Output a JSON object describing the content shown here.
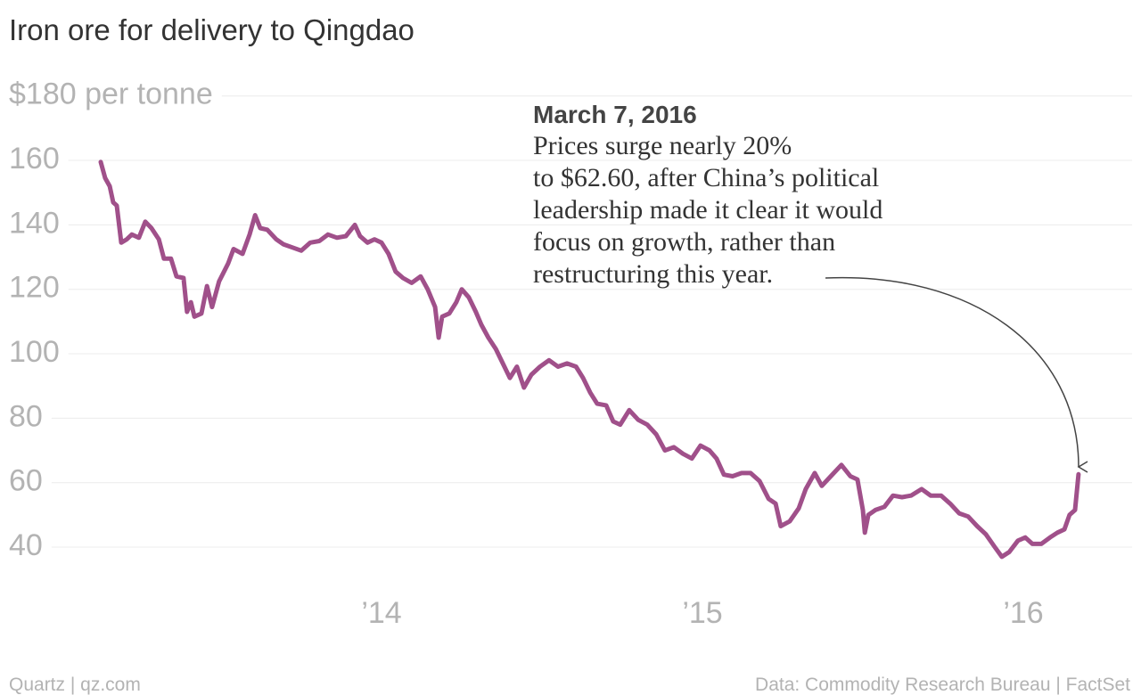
{
  "chart_data": {
    "type": "line",
    "title": "Iron ore for delivery to Qingdao",
    "source_left": "Quartz | qz.com",
    "source_right": "Data: Commodity Research Bureau | FactSet",
    "annotation": {
      "title": "March 7, 2016",
      "lines": [
        "Prices surge nearly 20%",
        "to $62.60, after China’s political",
        "leadership made it clear it would",
        "focus on growth, rather than",
        "restructuring this year."
      ]
    },
    "xlim": [
      2012.85,
      2016.35
    ],
    "xticks": [
      {
        "value": 2014,
        "label": "’14"
      },
      {
        "value": 2015,
        "label": "’15"
      },
      {
        "value": 2016,
        "label": "’16"
      }
    ],
    "ylim": [
      30,
      180
    ],
    "yticks": [
      40,
      60,
      80,
      100,
      120,
      140,
      160,
      {
        "value": 180,
        "label": "$180 per tonne"
      }
    ],
    "grid": true,
    "series": [
      {
        "name": "Iron ore",
        "color": "#a0508a",
        "x": [
          2013.125,
          2013.139,
          2013.153,
          2013.164,
          2013.175,
          2013.189,
          2013.206,
          2013.222,
          2013.244,
          2013.264,
          2013.283,
          2013.306,
          2013.322,
          2013.344,
          2013.361,
          2013.383,
          2013.394,
          2013.406,
          2013.417,
          2013.439,
          2013.456,
          2013.472,
          2013.494,
          2013.522,
          2013.539,
          2013.567,
          2013.589,
          2013.606,
          2013.622,
          2013.644,
          2013.672,
          2013.694,
          2013.722,
          2013.75,
          2013.778,
          2013.806,
          2013.833,
          2013.861,
          2013.889,
          2013.917,
          2013.933,
          2013.956,
          2013.978,
          2014,
          2014.022,
          2014.044,
          2014.067,
          2014.094,
          2014.122,
          2014.144,
          2014.167,
          2014.178,
          2014.189,
          2014.211,
          2014.233,
          2014.25,
          2014.272,
          2014.294,
          2014.311,
          2014.333,
          2014.356,
          2014.378,
          2014.4,
          2014.422,
          2014.444,
          2014.467,
          2014.494,
          2014.522,
          2014.55,
          2014.578,
          2014.606,
          2014.628,
          2014.65,
          2014.672,
          2014.7,
          2014.722,
          2014.744,
          2014.772,
          2014.8,
          2014.828,
          2014.856,
          2014.883,
          2014.911,
          2014.939,
          2014.967,
          2014.994,
          2015.022,
          2015.044,
          2015.067,
          2015.094,
          2015.122,
          2015.15,
          2015.178,
          2015.206,
          2015.228,
          2015.244,
          2015.272,
          2015.3,
          2015.322,
          2015.35,
          2015.372,
          2015.4,
          2015.433,
          2015.461,
          2015.483,
          2015.5,
          2015.506,
          2015.517,
          2015.539,
          2015.567,
          2015.594,
          2015.622,
          2015.65,
          2015.683,
          2015.711,
          2015.744,
          2015.772,
          2015.8,
          2015.828,
          2015.856,
          2015.883,
          2015.911,
          2015.933,
          2015.956,
          2015.983,
          2016.006,
          2016.028,
          2016.056,
          2016.083,
          2016.106,
          2016.128,
          2016.144,
          2016.161,
          2016.172
        ],
        "values": [
          159.5,
          154.5,
          152,
          147,
          146,
          134.5,
          135.5,
          137,
          136,
          141,
          139,
          135.5,
          129.5,
          129.5,
          124,
          123.5,
          113,
          116,
          111.5,
          112.5,
          121,
          114.5,
          122.5,
          128,
          132.5,
          131,
          137,
          143,
          139,
          138.5,
          135.5,
          134,
          133,
          132,
          134.5,
          135,
          137,
          136,
          136.5,
          140,
          136.5,
          134.5,
          135.5,
          134.5,
          131,
          125.5,
          123.5,
          122,
          124,
          120,
          114.5,
          105,
          111.5,
          112.5,
          116,
          120,
          117.5,
          113,
          109,
          105,
          101.5,
          97,
          92.5,
          96,
          89.5,
          93.5,
          96,
          98,
          96,
          97,
          96,
          92.5,
          88,
          84.5,
          84,
          79,
          78,
          82.5,
          79.5,
          78,
          75,
          70,
          71,
          69,
          67.5,
          71.5,
          70,
          67.5,
          62.5,
          62,
          63,
          63,
          60.5,
          55,
          53.5,
          46.5,
          48,
          52,
          58,
          63,
          59,
          62,
          65.5,
          62,
          61,
          51.5,
          44.5,
          50,
          51.5,
          52.5,
          56,
          55.5,
          56,
          58,
          56,
          56,
          53.5,
          50.5,
          49.5,
          46.5,
          44,
          40,
          37,
          38.5,
          42,
          43,
          41,
          41,
          43,
          44.5,
          45.5,
          50,
          51.5,
          62.6
        ]
      }
    ]
  }
}
